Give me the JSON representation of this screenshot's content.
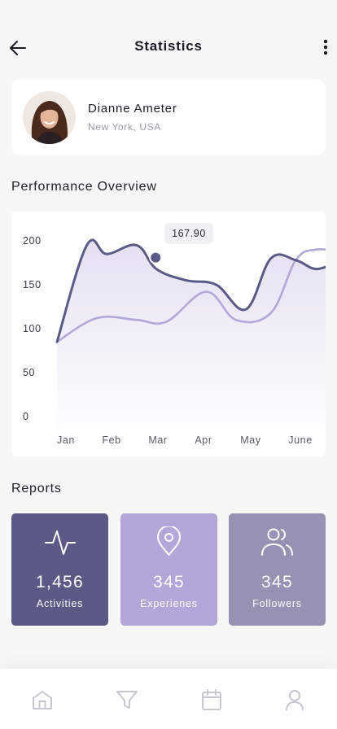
{
  "header": {
    "title": "Statistics",
    "back_icon": "arrow-left-icon",
    "more_icon": "more-vertical-icon"
  },
  "profile": {
    "name": "Dianne Ameter",
    "location": "New York, USA"
  },
  "performance": {
    "title": "Performance Overview"
  },
  "chart_data": {
    "type": "line",
    "categories": [
      "Jan",
      "Feb",
      "Mar",
      "Apr",
      "May",
      "June"
    ],
    "yticks": [
      "0",
      "50",
      "100",
      "150",
      "200"
    ],
    "ylim": [
      0,
      200
    ],
    "grid": false,
    "series": [
      {
        "color": "#5b5a86",
        "x": [
          0,
          0.6,
          1.0,
          1.6,
          2.0,
          2.6,
          3.2,
          3.8,
          4.3,
          4.8,
          5.2,
          5.6
        ],
        "values": [
          85,
          195,
          185,
          195,
          167.9,
          155,
          150,
          122,
          180,
          178,
          168,
          175
        ]
      },
      {
        "color": "#b3a7d9",
        "x": [
          0,
          0.8,
          1.6,
          2.2,
          3.0,
          3.6,
          4.3,
          4.8,
          5.2,
          5.6
        ],
        "values": [
          85,
          112,
          110,
          108,
          142,
          110,
          118,
          178,
          190,
          188
        ]
      }
    ],
    "highlight": {
      "series": 0,
      "category": "Mar",
      "value": 167.9,
      "label": "167.90"
    }
  },
  "reports": {
    "title": "Reports",
    "items": [
      {
        "value": "1,456",
        "label": "Activities",
        "icon": "activity-icon",
        "color": "#5b5a86"
      },
      {
        "value": "345",
        "label": "Experienes",
        "icon": "location-pin-icon",
        "color": "#b3a7d9"
      },
      {
        "value": "345",
        "label": "Followers",
        "icon": "users-icon",
        "color": "#9593b4"
      }
    ]
  },
  "nav": {
    "items": [
      "home-icon",
      "filter-icon",
      "calendar-icon",
      "user-icon"
    ]
  }
}
